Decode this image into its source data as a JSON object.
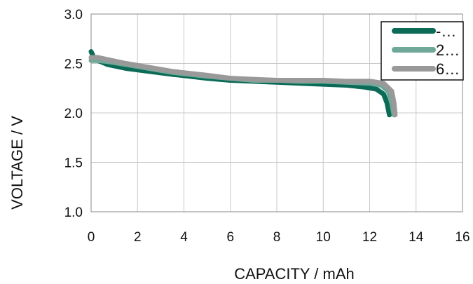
{
  "chart_data": {
    "type": "line",
    "title": "",
    "xlabel": "CAPACITY / mAh",
    "ylabel": "VOLTAGE / V",
    "xlim": [
      0,
      16
    ],
    "ylim": [
      1.0,
      3.0
    ],
    "xticks": [
      "0",
      "2",
      "4",
      "6",
      "8",
      "10",
      "12",
      "14",
      "16"
    ],
    "yticks": [
      "1.0",
      "1.5",
      "2.0",
      "2.5",
      "3.0"
    ],
    "grid": true,
    "legend_position": "top-right",
    "legend_labels": [
      "-…",
      "2…",
      "6…"
    ],
    "series": [
      {
        "color": "#0b6b57",
        "points": [
          [
            0,
            2.62
          ],
          [
            0.1,
            2.57
          ],
          [
            0.3,
            2.53
          ],
          [
            0.7,
            2.49
          ],
          [
            1.5,
            2.45
          ],
          [
            2.5,
            2.42
          ],
          [
            3.5,
            2.39
          ],
          [
            5,
            2.35
          ],
          [
            6,
            2.33
          ],
          [
            7,
            2.32
          ],
          [
            8,
            2.31
          ],
          [
            9,
            2.3
          ],
          [
            10,
            2.29
          ],
          [
            11,
            2.28
          ],
          [
            11.8,
            2.26
          ],
          [
            12.3,
            2.24
          ],
          [
            12.6,
            2.19
          ],
          [
            12.75,
            2.1
          ],
          [
            12.85,
            1.98
          ]
        ]
      },
      {
        "color": "#6fa898",
        "points": [
          [
            0,
            2.53
          ],
          [
            0.3,
            2.53
          ],
          [
            0.7,
            2.52
          ],
          [
            1.5,
            2.49
          ],
          [
            2.5,
            2.45
          ],
          [
            3.5,
            2.41
          ],
          [
            5,
            2.37
          ],
          [
            6,
            2.35
          ],
          [
            7,
            2.33
          ],
          [
            8,
            2.33
          ],
          [
            9,
            2.32
          ],
          [
            10,
            2.32
          ],
          [
            11,
            2.31
          ],
          [
            12,
            2.3
          ],
          [
            12.5,
            2.28
          ],
          [
            12.8,
            2.22
          ],
          [
            12.95,
            2.1
          ],
          [
            13.05,
            1.98
          ]
        ]
      },
      {
        "color": "#999999",
        "points": [
          [
            0,
            2.56
          ],
          [
            0.3,
            2.56
          ],
          [
            0.7,
            2.54
          ],
          [
            1.5,
            2.5
          ],
          [
            2.5,
            2.46
          ],
          [
            3.5,
            2.42
          ],
          [
            5,
            2.38
          ],
          [
            6,
            2.35
          ],
          [
            7,
            2.34
          ],
          [
            8,
            2.33
          ],
          [
            9,
            2.33
          ],
          [
            10,
            2.33
          ],
          [
            11,
            2.32
          ],
          [
            12,
            2.32
          ],
          [
            12.6,
            2.3
          ],
          [
            12.95,
            2.22
          ],
          [
            13.05,
            2.1
          ],
          [
            13.1,
            1.98
          ]
        ]
      }
    ]
  }
}
